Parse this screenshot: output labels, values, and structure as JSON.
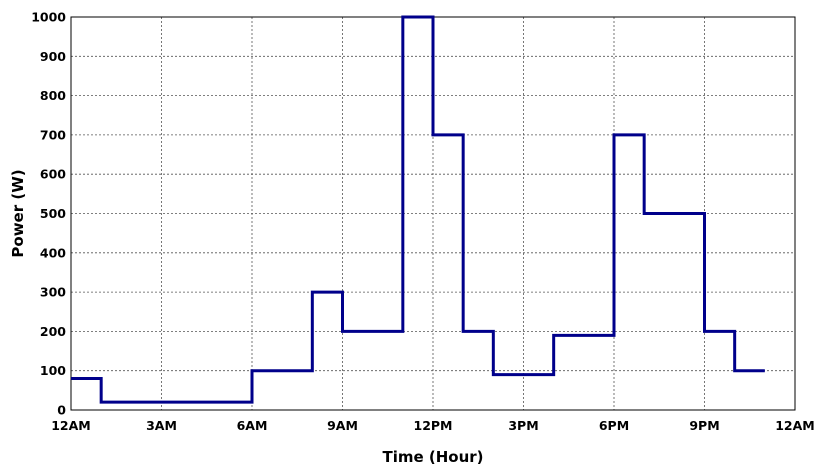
{
  "chart_data": {
    "type": "line",
    "step": true,
    "xlabel": "Time (Hour)",
    "ylabel": "Power (W)",
    "xlim": [
      0,
      24
    ],
    "ylim": [
      0,
      1000
    ],
    "grid": true,
    "x_ticks": [
      {
        "value": 0,
        "label": "12AM"
      },
      {
        "value": 3,
        "label": "3AM"
      },
      {
        "value": 6,
        "label": "6AM"
      },
      {
        "value": 9,
        "label": "9AM"
      },
      {
        "value": 12,
        "label": "12PM"
      },
      {
        "value": 15,
        "label": "3PM"
      },
      {
        "value": 18,
        "label": "6PM"
      },
      {
        "value": 21,
        "label": "9PM"
      },
      {
        "value": 24,
        "label": "12AM"
      }
    ],
    "y_ticks": [
      0,
      100,
      200,
      300,
      400,
      500,
      600,
      700,
      800,
      900,
      1000
    ],
    "series": [
      {
        "color": "#00008b",
        "segments": [
          {
            "x_start": 0,
            "x_end": 1,
            "y": 80
          },
          {
            "x_start": 1,
            "x_end": 6,
            "y": 20
          },
          {
            "x_start": 6,
            "x_end": 8,
            "y": 100
          },
          {
            "x_start": 8,
            "x_end": 9,
            "y": 300
          },
          {
            "x_start": 9,
            "x_end": 11,
            "y": 200
          },
          {
            "x_start": 11,
            "x_end": 12,
            "y": 1000
          },
          {
            "x_start": 12,
            "x_end": 13,
            "y": 700
          },
          {
            "x_start": 13,
            "x_end": 14,
            "y": 200
          },
          {
            "x_start": 14,
            "x_end": 16,
            "y": 90
          },
          {
            "x_start": 16,
            "x_end": 18,
            "y": 190
          },
          {
            "x_start": 18,
            "x_end": 19,
            "y": 700
          },
          {
            "x_start": 19,
            "x_end": 21,
            "y": 500
          },
          {
            "x_start": 21,
            "x_end": 22,
            "y": 200
          },
          {
            "x_start": 22,
            "x_end": 23,
            "y": 100
          }
        ]
      }
    ]
  }
}
